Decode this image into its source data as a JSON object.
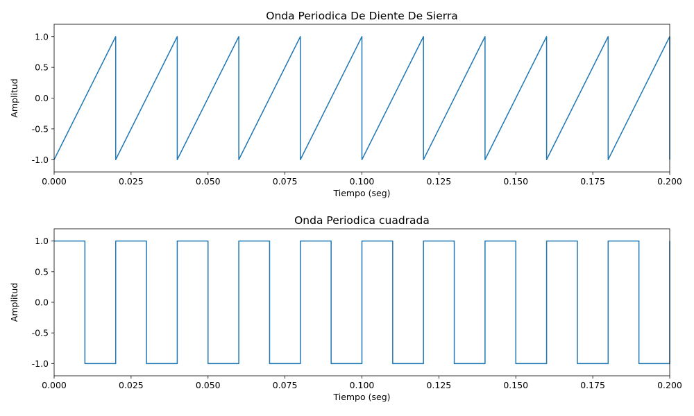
{
  "chart_data": [
    {
      "type": "line",
      "title": "Onda Periodica De Diente De Sierra",
      "xlabel": "Tiempo (seg)",
      "ylabel": "Amplitud",
      "xlim": [
        0,
        0.2
      ],
      "ylim": [
        -1.2,
        1.2
      ],
      "xticks": [
        "0.000",
        "0.025",
        "0.050",
        "0.075",
        "0.100",
        "0.125",
        "0.150",
        "0.175",
        "0.200"
      ],
      "yticks": [
        "-1.0",
        "-0.5",
        "0.0",
        "0.5",
        "1.0"
      ],
      "grid": false,
      "series": [
        {
          "color": "#1f77b4",
          "x": [
            0,
            0.02,
            0.02,
            0.04,
            0.04,
            0.06,
            0.06,
            0.08,
            0.08,
            0.1,
            0.1,
            0.12,
            0.12,
            0.14,
            0.14,
            0.16,
            0.16,
            0.18,
            0.18,
            0.2,
            0.2
          ],
          "y": [
            -1,
            1,
            -1,
            1,
            -1,
            1,
            -1,
            1,
            -1,
            1,
            -1,
            1,
            -1,
            1,
            -1,
            1,
            -1,
            1,
            -1,
            1,
            -1
          ]
        }
      ]
    },
    {
      "type": "line",
      "title": "Onda Periodica cuadrada",
      "xlabel": "Tiempo (seg)",
      "ylabel": "Amplitud",
      "xlim": [
        0,
        0.2
      ],
      "ylim": [
        -1.2,
        1.2
      ],
      "xticks": [
        "0.000",
        "0.025",
        "0.050",
        "0.075",
        "0.100",
        "0.125",
        "0.150",
        "0.175",
        "0.200"
      ],
      "yticks": [
        "-1.0",
        "-0.5",
        "0.0",
        "0.5",
        "1.0"
      ],
      "grid": false,
      "series": [
        {
          "color": "#1f77b4",
          "x": [
            0,
            0.01,
            0.01,
            0.02,
            0.02,
            0.03,
            0.03,
            0.04,
            0.04,
            0.05,
            0.05,
            0.06,
            0.06,
            0.07,
            0.07,
            0.08,
            0.08,
            0.09,
            0.09,
            0.1,
            0.1,
            0.11,
            0.11,
            0.12,
            0.12,
            0.13,
            0.13,
            0.14,
            0.14,
            0.15,
            0.15,
            0.16,
            0.16,
            0.17,
            0.17,
            0.18,
            0.18,
            0.19,
            0.19,
            0.2,
            0.2
          ],
          "y": [
            1,
            1,
            -1,
            -1,
            1,
            1,
            -1,
            -1,
            1,
            1,
            -1,
            -1,
            1,
            1,
            -1,
            -1,
            1,
            1,
            -1,
            -1,
            1,
            1,
            -1,
            -1,
            1,
            1,
            -1,
            -1,
            1,
            1,
            -1,
            -1,
            1,
            1,
            -1,
            -1,
            1,
            1,
            -1,
            -1,
            1
          ]
        }
      ]
    }
  ]
}
